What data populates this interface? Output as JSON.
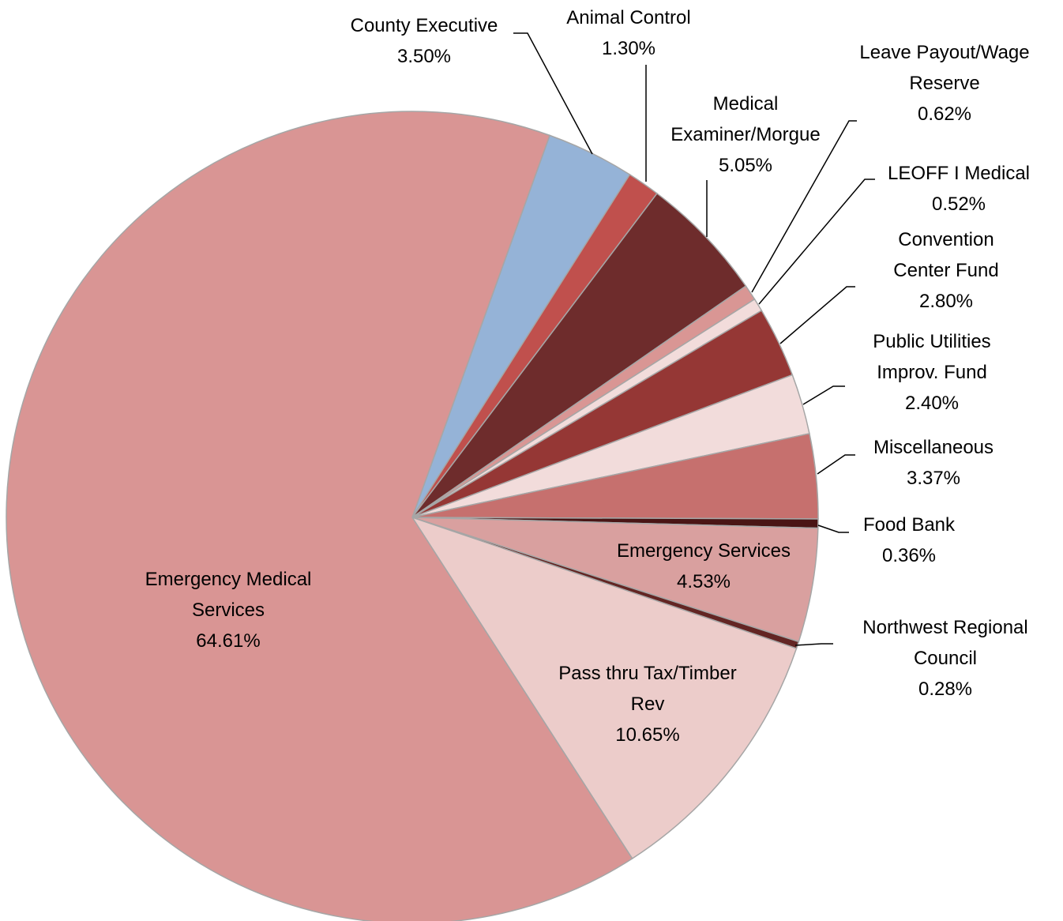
{
  "chart_data": {
    "type": "pie",
    "categories": [
      "County Executive",
      "Animal Control",
      "Medical Examiner/Morgue",
      "Leave Payout/Wage Reserve",
      "LEOFF I Medical",
      "Convention Center Fund",
      "Public Utilities Improv. Fund",
      "Miscellaneous",
      "Food Bank",
      "Emergency Services",
      "Northwest Regional Council",
      "Pass thru Tax/Timber Rev",
      "Emergency Medical Services"
    ],
    "values": [
      3.5,
      1.3,
      5.05,
      0.62,
      0.52,
      2.8,
      2.4,
      3.37,
      0.36,
      4.53,
      0.28,
      10.65,
      64.61
    ],
    "value_labels": [
      "3.50%",
      "1.30%",
      "5.05%",
      "0.62%",
      "0.52%",
      "2.80%",
      "2.40%",
      "3.37%",
      "0.36%",
      "4.53%",
      "0.28%",
      "10.65%",
      "64.61%"
    ],
    "colors": [
      "#95b3d7",
      "#c0504d",
      "#6e2c2c",
      "#d99694",
      "#f2dcdb",
      "#953735",
      "#f2dcdb",
      "#c6706e",
      "#4a1515",
      "#d9a09f",
      "#632523",
      "#ecccca",
      "#d99594"
    ]
  }
}
